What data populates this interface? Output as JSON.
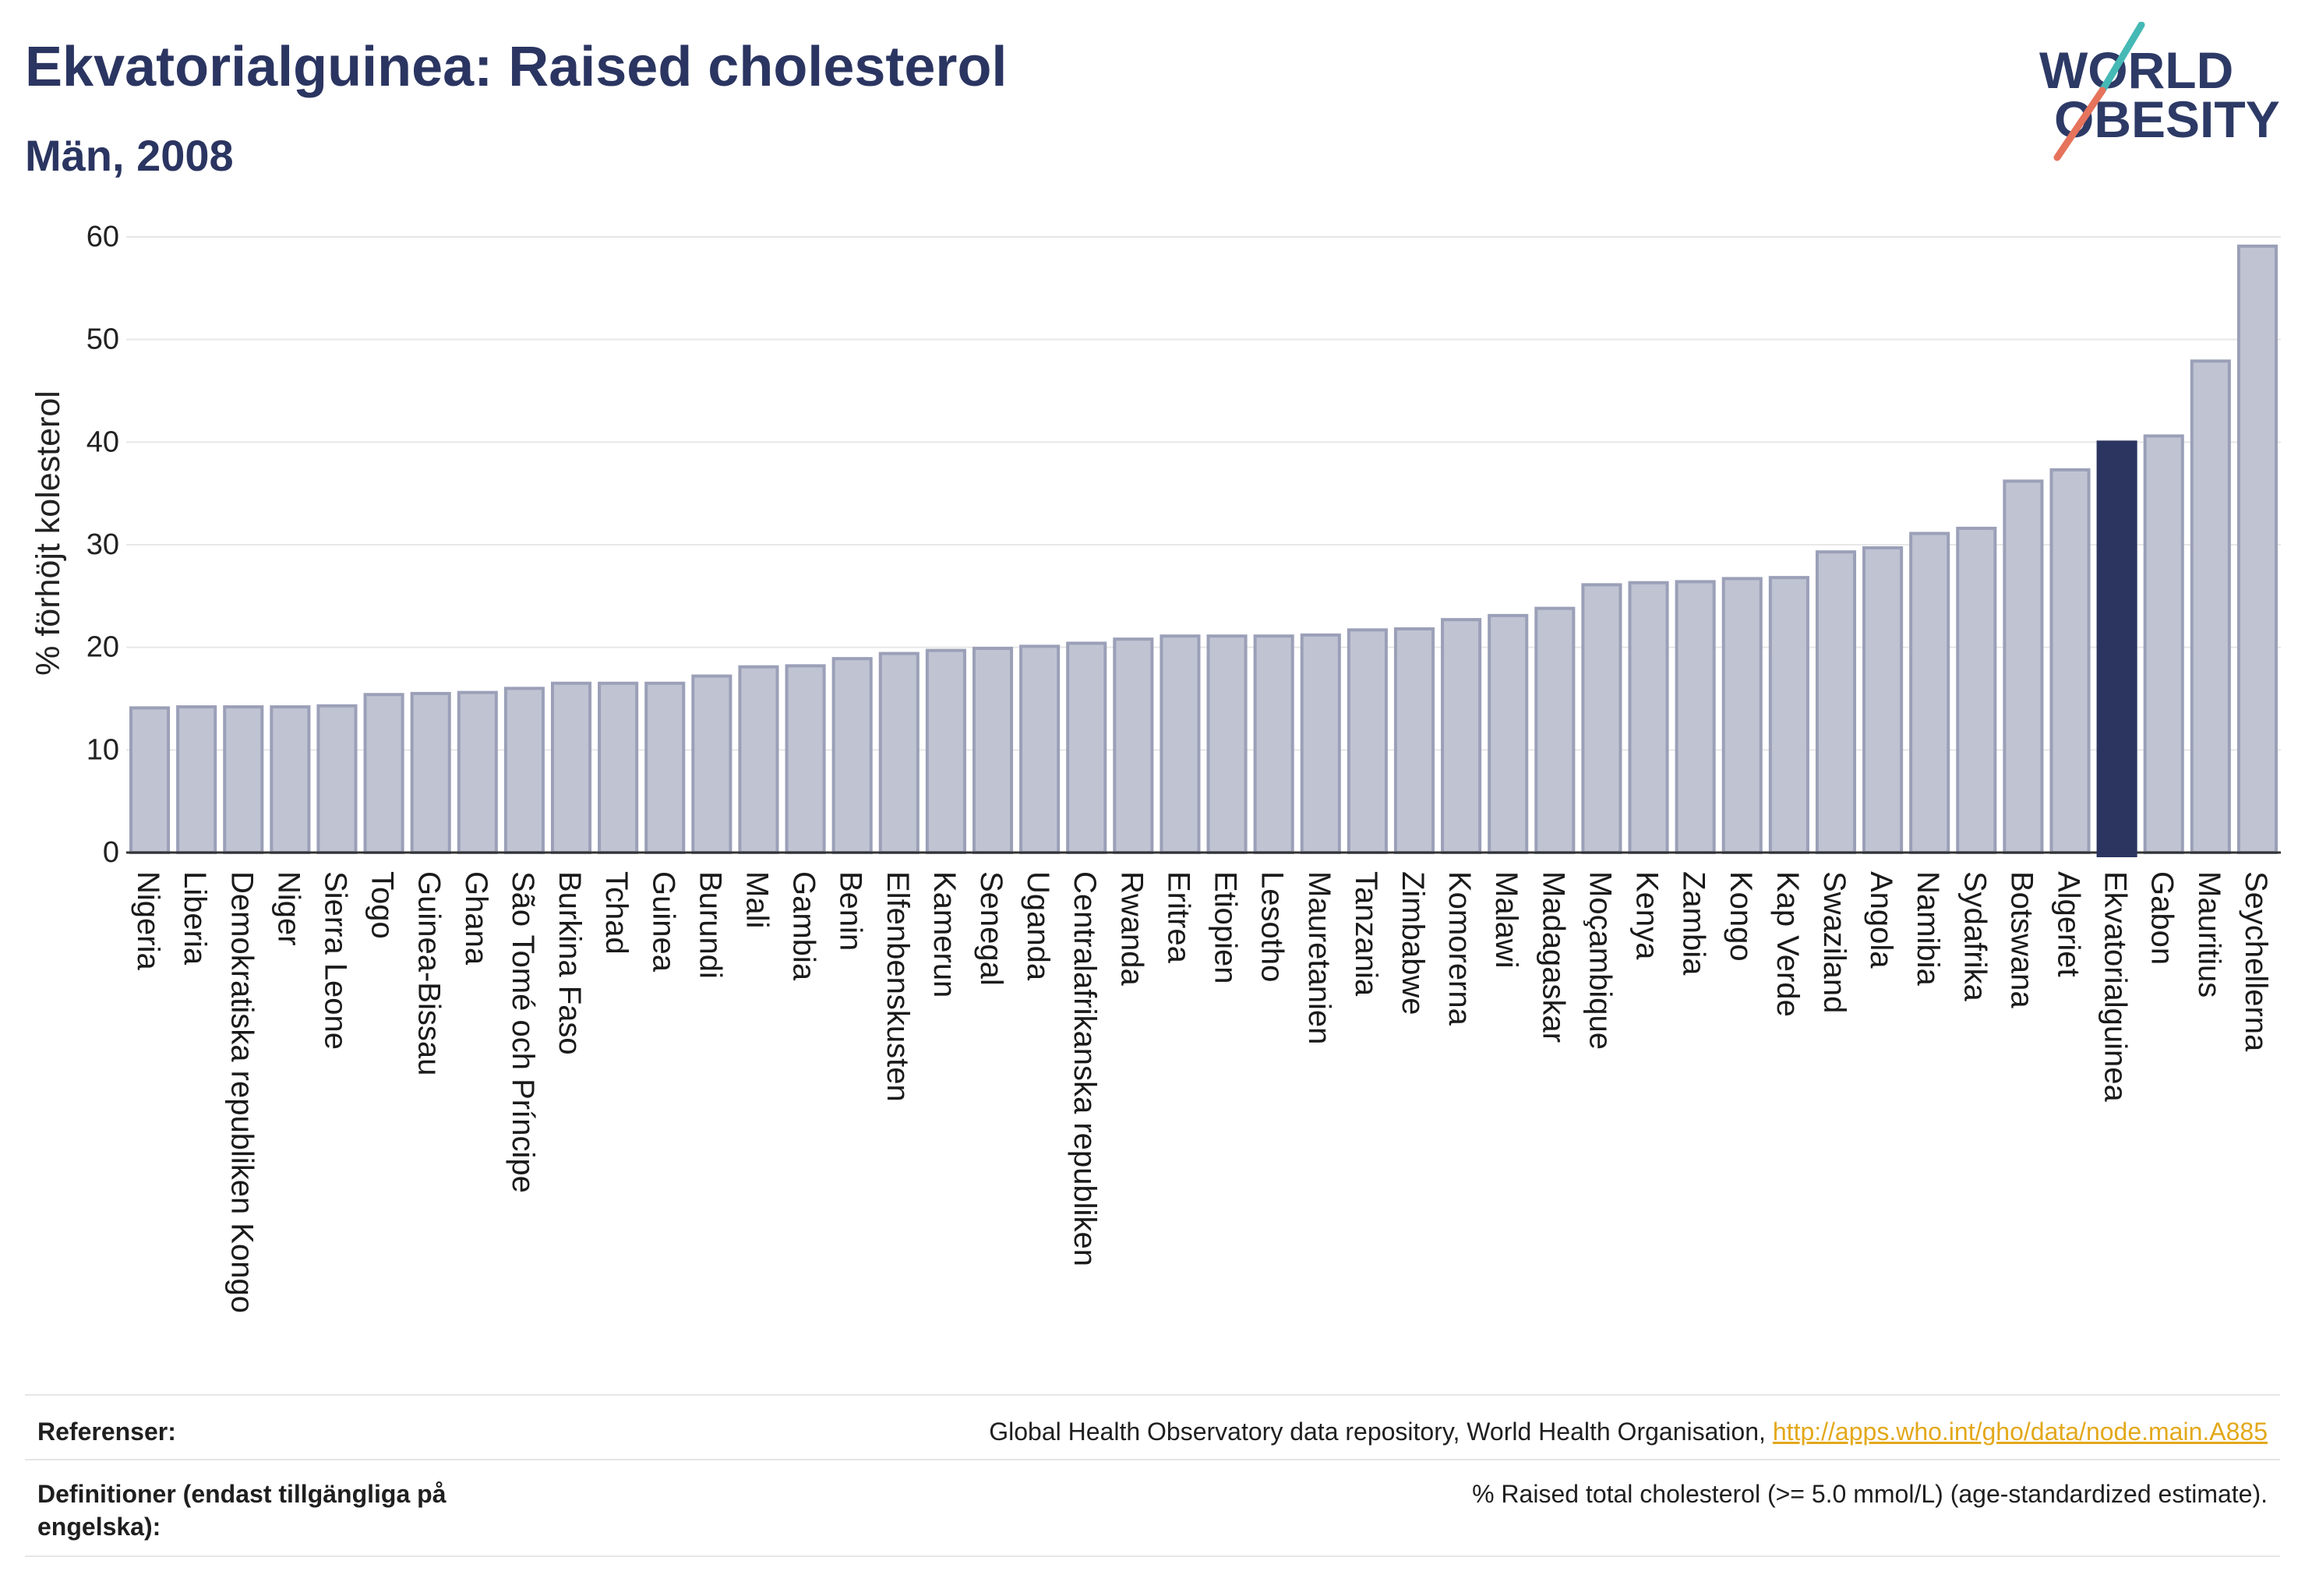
{
  "theme": {
    "navy": "#2b3561"
  },
  "logo": {
    "line1": "WORLD",
    "line2": "OBESITY",
    "text_color": "#2d3a66",
    "slash_top_color": "#45b9b5",
    "slash_bottom_color": "#e6735c"
  },
  "chart_data": {
    "type": "bar",
    "title": "Ekvatorialguinea: Raised cholesterol",
    "subtitle": "Män, 2008",
    "xlabel": "",
    "ylabel": "% förhöjt kolesterol",
    "ylim": [
      0,
      60
    ],
    "yticks": [
      0,
      10,
      20,
      30,
      40,
      50,
      60
    ],
    "grid": true,
    "highlight_category": "Ekvatorialguinea",
    "categories": [
      "Nigeria",
      "Liberia",
      "Demokratiska republiken Kongo",
      "Niger",
      "Sierra Leone",
      "Togo",
      "Guinea-Bissau",
      "Ghana",
      "São Tomé och Príncipe",
      "Burkina Faso",
      "Tchad",
      "Guinea",
      "Burundi",
      "Mali",
      "Gambia",
      "Benin",
      "Elfenbenskusten",
      "Kamerun",
      "Senegal",
      "Uganda",
      "Centralafrikanska republiken",
      "Rwanda",
      "Eritrea",
      "Etiopien",
      "Lesotho",
      "Mauretanien",
      "Tanzania",
      "Zimbabwe",
      "Komorerna",
      "Malawi",
      "Madagaskar",
      "Moçambique",
      "Kenya",
      "Zambia",
      "Kongo",
      "Kap Verde",
      "Swaziland",
      "Angola",
      "Namibia",
      "Sydafrika",
      "Botswana",
      "Algeriet",
      "Ekvatorialguinea",
      "Gabon",
      "Mauritius",
      "Seychellerna"
    ],
    "values": [
      14.1,
      14.2,
      14.2,
      14.2,
      14.3,
      15.4,
      15.5,
      15.6,
      16.0,
      16.5,
      16.5,
      16.5,
      17.2,
      18.1,
      18.2,
      18.9,
      19.4,
      19.7,
      19.9,
      20.1,
      20.4,
      20.8,
      21.1,
      21.1,
      21.1,
      21.2,
      21.7,
      21.8,
      22.7,
      23.1,
      23.8,
      26.1,
      26.3,
      26.4,
      26.7,
      26.8,
      29.3,
      29.7,
      31.1,
      31.6,
      36.2,
      37.3,
      40.0,
      40.6,
      47.9,
      59.1
    ],
    "colors": {
      "bar": "#c0c3d2",
      "bar_edge": "#9ba0b8",
      "highlight": "#2b3560",
      "grid": "#e7e7e7",
      "axis": "#333333"
    }
  },
  "footer": {
    "references_label": "Referenser:",
    "references_text": "Global Health Observatory data repository, World Health Organisation,",
    "references_link": "http://apps.who.int/gho/data/node.main.A885",
    "definitions_label": "Definitioner (endast tillgängliga på engelska):",
    "definitions_text": "% Raised total cholesterol (>= 5.0 mmol/L) (age-standardized estimate).",
    "link_color": "#e3a81b"
  }
}
